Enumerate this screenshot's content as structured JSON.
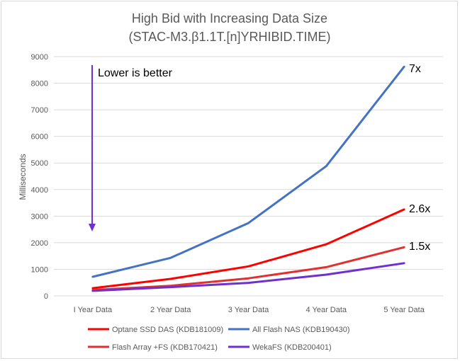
{
  "chart_data": {
    "type": "line",
    "title": "High Bid with Increasing Data Size",
    "subtitle": "(STAC-M3.β1.1T.[n]YRHIBID.TIME)",
    "xlabel": "",
    "ylabel": "Milliseconds",
    "categories": [
      "I Year Data",
      "2 Year Data",
      "3 Year Data",
      "4 Year Data",
      "5 Year Data"
    ],
    "ylim": [
      0,
      9000
    ],
    "yticks": [
      0,
      1000,
      2000,
      3000,
      4000,
      5000,
      6000,
      7000,
      8000,
      9000
    ],
    "grid": true,
    "legend_position": "bottom",
    "series": [
      {
        "name": "Optane SSD DAS (KDB181009)",
        "color": "#ff0000",
        "values": [
          290,
          640,
          1110,
          1940,
          3250
        ]
      },
      {
        "name": "All Flash NAS (KDB190430)",
        "color": "#4472c4",
        "values": [
          720,
          1430,
          2740,
          4880,
          8620
        ]
      },
      {
        "name": "Flash Array +FS (KDB170421)",
        "color": "#e03030",
        "values": [
          220,
          380,
          660,
          1080,
          1830
        ]
      },
      {
        "name": "WekaFS (KDB200401)",
        "color": "#7030d0",
        "values": [
          190,
          330,
          490,
          800,
          1230
        ]
      }
    ],
    "annotations": [
      {
        "text": "Lower is better",
        "arrow_color": "#7030d0"
      },
      {
        "text": "7x",
        "series_index": 1
      },
      {
        "text": "2.6x",
        "series_index": 0
      },
      {
        "text": "1.5x",
        "series_index": 2
      }
    ]
  }
}
